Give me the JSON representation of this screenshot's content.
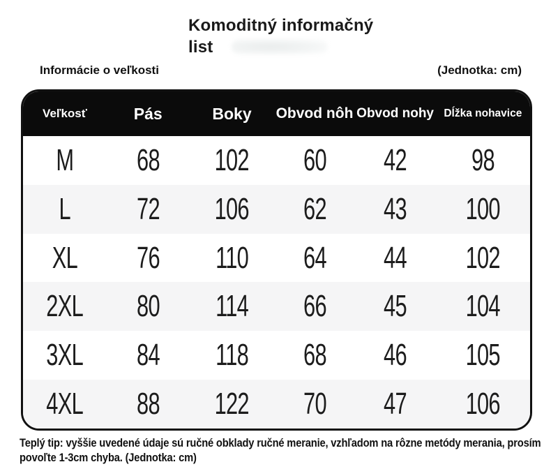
{
  "page": {
    "title": "Komoditný informačný list",
    "section_label": "Informácie o veľkosti",
    "unit_label": "(Jednotka: cm)",
    "footer_note": "Teplý tip: vyššie uvedené údaje sú ručné obklady ručné meranie, vzhľadom na rôzne metódy merania, prosím povoľte 1-3cm chyba. (Jednotka: cm)"
  },
  "size_table": {
    "columns": [
      "Veľkosť",
      "Pás",
      "Boky",
      "Obvod nôh",
      "Obvod nohy",
      "Dĺžka nohavice"
    ],
    "rows": [
      {
        "size": "M",
        "values": [
          "68",
          "102",
          "60",
          "42",
          "98"
        ]
      },
      {
        "size": "L",
        "values": [
          "72",
          "106",
          "62",
          "43",
          "100"
        ]
      },
      {
        "size": "XL",
        "values": [
          "76",
          "110",
          "64",
          "44",
          "102"
        ]
      },
      {
        "size": "2XL",
        "values": [
          "80",
          "114",
          "66",
          "45",
          "104"
        ]
      },
      {
        "size": "3XL",
        "values": [
          "84",
          "118",
          "68",
          "46",
          "105"
        ]
      },
      {
        "size": "4XL",
        "values": [
          "88",
          "122",
          "70",
          "47",
          "106"
        ]
      }
    ],
    "colors": {
      "header_bg": "#0b0b0b",
      "header_text": "#ffffff",
      "row_bg": "#ffffff",
      "row_alt_bg": "#f5f5f6",
      "border": "#111111",
      "text": "#1c1c1c"
    }
  }
}
